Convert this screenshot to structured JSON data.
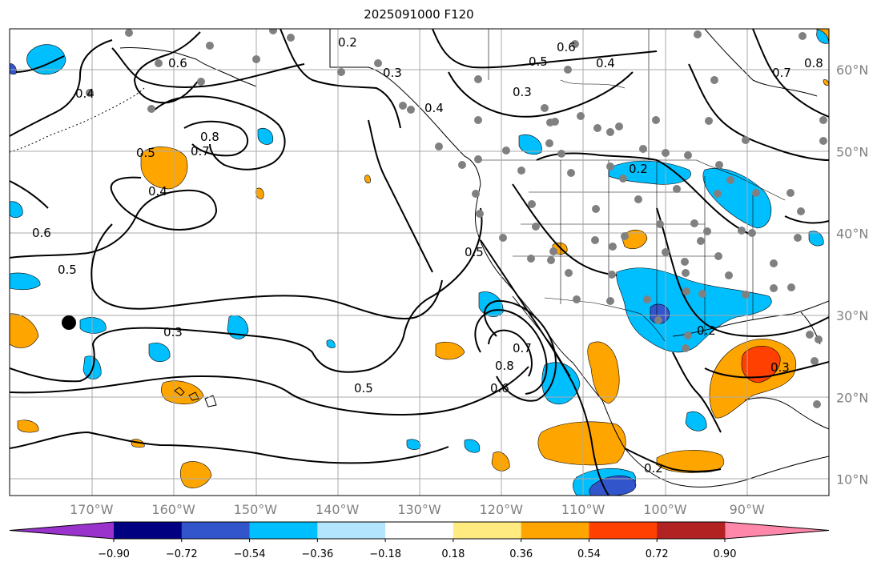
{
  "title": "2025091000 F120",
  "map": {
    "lon_range": [
      -180,
      -80
    ],
    "lat_range": [
      8,
      65
    ],
    "lon_ticks": [
      {
        "value": -170,
        "label": "170°W"
      },
      {
        "value": -160,
        "label": "160°W"
      },
      {
        "value": -150,
        "label": "150°W"
      },
      {
        "value": -140,
        "label": "140°W"
      },
      {
        "value": -130,
        "label": "130°W"
      },
      {
        "value": -120,
        "label": "120°W"
      },
      {
        "value": -110,
        "label": "110°W"
      },
      {
        "value": -100,
        "label": "100°W"
      },
      {
        "value": -90,
        "label": "90°W"
      }
    ],
    "lat_ticks": [
      {
        "value": 60,
        "label": "60°N"
      },
      {
        "value": 50,
        "label": "50°N"
      },
      {
        "value": 40,
        "label": "40°N"
      },
      {
        "value": 30,
        "label": "30°N"
      },
      {
        "value": 20,
        "label": "20°N"
      },
      {
        "value": 10,
        "label": "10°N"
      }
    ],
    "grid": true,
    "contour_labels": [
      "0.2",
      "0.3",
      "0.4",
      "0.5",
      "0.6",
      "0.7",
      "0.8"
    ]
  },
  "colorbar": {
    "colors": [
      "#9933cc",
      "#000080",
      "#3355cc",
      "#00bfff",
      "#b3e5ff",
      "#ffffff",
      "#ffeb80",
      "#ffa500",
      "#ff4000",
      "#b22222",
      "#ff88aa"
    ],
    "tick_labels": [
      "−0.90",
      "−0.72",
      "−0.54",
      "−0.36",
      "−0.18",
      "0.18",
      "0.36",
      "0.54",
      "0.72",
      "0.90"
    ],
    "orientation": "horizontal",
    "extend": "both"
  }
}
